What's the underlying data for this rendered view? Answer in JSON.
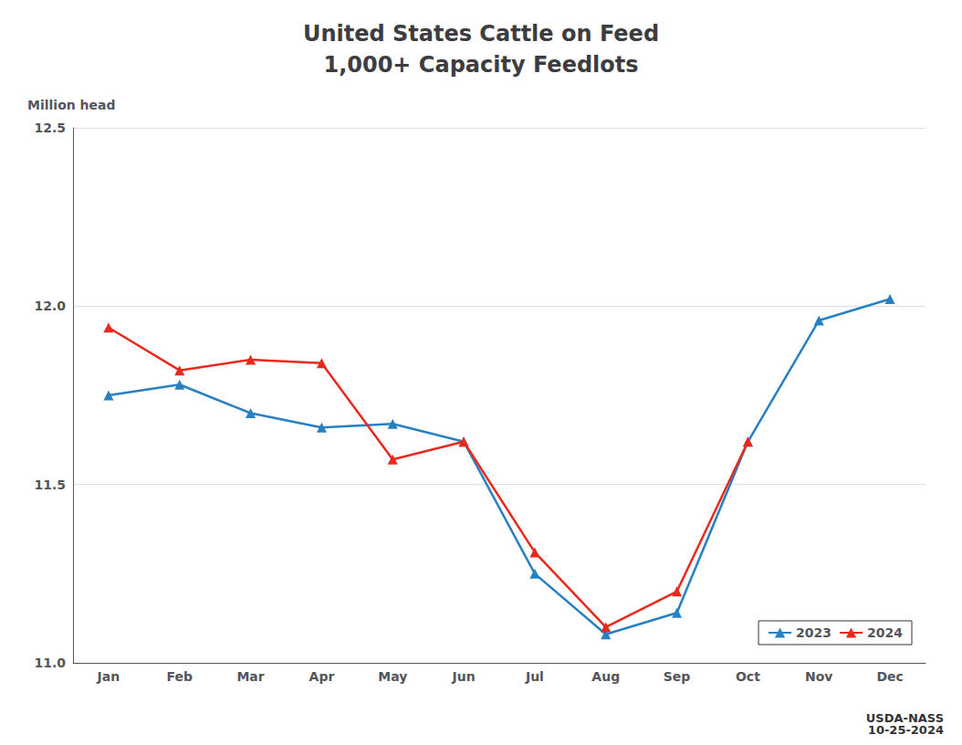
{
  "chart_data": {
    "type": "line",
    "title": "United States Cattle on Feed\n1,000+ Capacity Feedlots",
    "ylabel": "Million head",
    "categories": [
      "Jan",
      "Feb",
      "Mar",
      "Apr",
      "May",
      "Jun",
      "Jul",
      "Aug",
      "Sep",
      "Oct",
      "Nov",
      "Dec"
    ],
    "series": [
      {
        "name": "2023",
        "color": "#2680C2",
        "marker": "triangle",
        "values": [
          11.75,
          11.78,
          11.7,
          11.66,
          11.67,
          11.62,
          11.25,
          11.08,
          11.14,
          11.62,
          11.96,
          12.02
        ]
      },
      {
        "name": "2024",
        "color": "#E8291C",
        "marker": "triangle",
        "values": [
          11.94,
          11.82,
          11.85,
          11.84,
          11.57,
          11.62,
          11.31,
          11.1,
          11.2,
          11.62,
          null,
          null
        ]
      }
    ],
    "ylim": [
      11.0,
      12.5
    ],
    "yticks": [
      {
        "value": 11.0,
        "label": "11.0"
      },
      11.5,
      {
        "value": 12.0,
        "label": "12.0"
      },
      12.5
    ],
    "grid": true,
    "legend": "lower right",
    "annotations": [
      "USDA-NASS\n10-25-2024"
    ]
  }
}
